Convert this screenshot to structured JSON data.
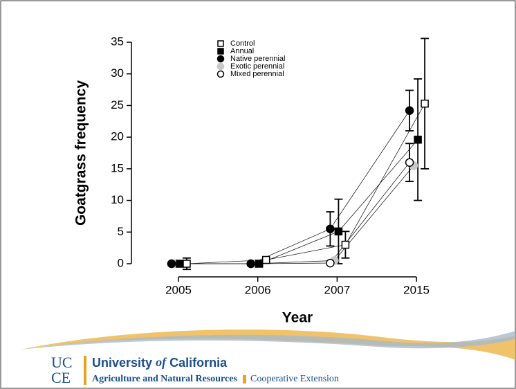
{
  "chart_data": {
    "type": "line",
    "ylabel": "Goatgrass frequency",
    "xlabel": "Year",
    "categories": [
      "2005",
      "2006",
      "2007",
      "2015"
    ],
    "ylim": [
      0,
      35
    ],
    "yticks": [
      0,
      5,
      10,
      15,
      20,
      25,
      30,
      35
    ],
    "series": [
      {
        "name": "Control",
        "marker": "open-square",
        "color": "#000000",
        "values": [
          0,
          0.6,
          3,
          25.3
        ],
        "errors": [
          0.9,
          null,
          2.1,
          10.3
        ]
      },
      {
        "name": "Annual",
        "marker": "filled-square",
        "color": "#000000",
        "values": [
          0,
          0,
          5.1,
          19.6
        ],
        "errors": [
          null,
          null,
          5.1,
          9.6
        ]
      },
      {
        "name": "Native perennial",
        "marker": "filled-circle",
        "color": "#000000",
        "values": [
          0,
          0,
          5.5,
          24.2
        ],
        "errors": [
          null,
          null,
          2.7,
          3.2
        ]
      },
      {
        "name": "Exotic perennial",
        "marker": "filled-circle",
        "color": "#c8c8c8",
        "values": [
          0,
          0,
          0.5,
          15.5
        ],
        "errors": [
          null,
          null,
          null,
          null
        ]
      },
      {
        "name": "Mixed perennial",
        "marker": "open-circle",
        "color": "#000000",
        "values": [
          0,
          0,
          0.1,
          16
        ],
        "errors": [
          null,
          null,
          null,
          3
        ]
      }
    ]
  },
  "footer": {
    "logo_top": "UC",
    "logo_bottom": "CE",
    "university": "University",
    "of": "of",
    "california": "California",
    "division": "Agriculture and Natural Resources",
    "extension": "Cooperative Extension"
  }
}
